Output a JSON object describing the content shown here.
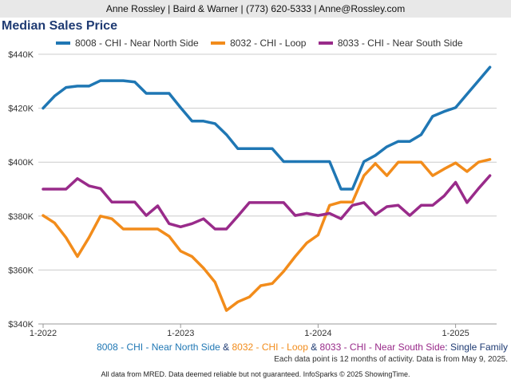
{
  "header": {
    "text": "Anne Rossley | Baird & Warner | (773) 620-5333 | Anne@Rossley.com"
  },
  "colors": {
    "blue": "#1f77b4",
    "orange": "#f28c1b",
    "purple": "#992b8a",
    "grid": "#cccccc",
    "title": "#1f3b73",
    "caption_tail": "#1f3b73"
  },
  "footer": {
    "caption_parts": [
      {
        "text": "8008 - CHI - Near North Side",
        "color": "#1f77b4"
      },
      {
        "text": " & ",
        "color": "#1f3b73"
      },
      {
        "text": "8032 - CHI - Loop",
        "color": "#f28c1b"
      },
      {
        "text": " & ",
        "color": "#1f3b73"
      },
      {
        "text": "8033 - CHI - Near South Side",
        "color": "#992b8a"
      },
      {
        "text": ": Single Family",
        "color": "#1f3b73"
      }
    ],
    "note": "Each data point is 12 months of activity. Data is from May 9, 2025.",
    "disclaimer": "All data from MRED. Data deemed reliable but not guaranteed. InfoSparks © 2025 ShowingTime."
  },
  "chart_data": {
    "type": "line",
    "title": "Median Sales Price",
    "ylim": [
      340000,
      440000
    ],
    "yticks": [
      340000,
      360000,
      380000,
      400000,
      420000,
      440000
    ],
    "ytick_labels": [
      "$340K",
      "$360K",
      "$380K",
      "$400K",
      "$420K",
      "$440K"
    ],
    "xticks": [
      0,
      12,
      24,
      36
    ],
    "xtick_labels": [
      "1-2022",
      "1-2023",
      "1-2024",
      "1-2025"
    ],
    "grid": "horizontal",
    "legend_position": "top",
    "series": [
      {
        "name": "8008 - CHI - Near North Side",
        "color": "#1f77b4",
        "values": [
          420000,
          424500,
          427700,
          428200,
          428200,
          430200,
          430200,
          430200,
          429700,
          425500,
          425500,
          425500,
          420200,
          415200,
          415200,
          414300,
          410200,
          405000,
          405000,
          405000,
          405000,
          400200,
          400200,
          400200,
          400200,
          400200,
          390000,
          390000,
          400200,
          402500,
          405700,
          407700,
          407700,
          410200,
          417000,
          418800,
          420200,
          425200,
          430200,
          435200
        ]
      },
      {
        "name": "8032 - CHI - Loop",
        "color": "#f28c1b",
        "values": [
          380200,
          377500,
          372000,
          365000,
          372000,
          380000,
          379000,
          375200,
          375200,
          375200,
          375200,
          372500,
          367000,
          365000,
          360700,
          355500,
          345000,
          348200,
          350000,
          354200,
          355000,
          359500,
          365000,
          370000,
          373000,
          384000,
          385200,
          385200,
          395000,
          399500,
          395000,
          400000,
          400000,
          400000,
          395000,
          397500,
          399700,
          396500,
          400000,
          401000
        ]
      },
      {
        "name": "8033 - CHI - Near South Side",
        "color": "#992b8a",
        "values": [
          390000,
          390000,
          390000,
          393900,
          391200,
          390200,
          385200,
          385200,
          385200,
          380200,
          383800,
          377200,
          376000,
          377200,
          379000,
          375200,
          375200,
          380000,
          385000,
          385000,
          385000,
          385000,
          380200,
          381000,
          380200,
          381000,
          379000,
          384000,
          385000,
          380500,
          383500,
          384000,
          380200,
          384000,
          384000,
          387500,
          392500,
          385000,
          390200,
          395000
        ]
      }
    ]
  }
}
